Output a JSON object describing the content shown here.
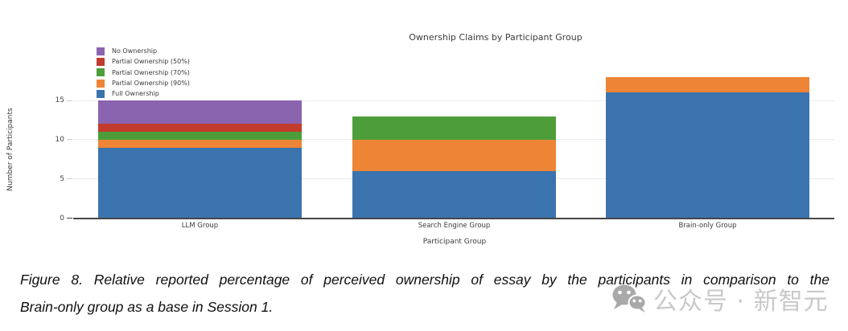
{
  "chart_data": {
    "type": "bar",
    "stacked": true,
    "title": "Ownership Claims by Participant Group",
    "xlabel": "Participant Group",
    "ylabel": "Number of Participants",
    "categories": [
      "LLM Group",
      "Search Engine Group",
      "Brain-only Group"
    ],
    "series": [
      {
        "name": "Full Ownership",
        "color": "#3b73af",
        "values": [
          9,
          6,
          16
        ]
      },
      {
        "name": "Partial Ownership (90%)",
        "color": "#ee8435",
        "values": [
          1,
          4,
          2
        ]
      },
      {
        "name": "Partial Ownership (70%)",
        "color": "#4d9e3a",
        "values": [
          1,
          3,
          0
        ]
      },
      {
        "name": "Partial Ownership (50%)",
        "color": "#c23b2d",
        "values": [
          1,
          0,
          0
        ]
      },
      {
        "name": "No Ownership",
        "color": "#8b64af",
        "values": [
          3,
          0,
          0
        ]
      }
    ],
    "legend_order": [
      "No Ownership",
      "Partial Ownership (50%)",
      "Partial Ownership (70%)",
      "Partial Ownership (90%)",
      "Full Ownership"
    ],
    "yticks": [
      0,
      5,
      10,
      15
    ],
    "ylim": [
      0,
      18.5
    ],
    "grid": true,
    "legend_position": "top-left"
  },
  "caption": {
    "line1": "Figure 8. Relative reported percentage of perceived ownership of essay by the participants in comparison to the",
    "line2": "Brain-only group as a base in Session 1."
  },
  "watermark": {
    "text": "公众号 · 新智元",
    "icon_color": "#a9a9a9"
  }
}
